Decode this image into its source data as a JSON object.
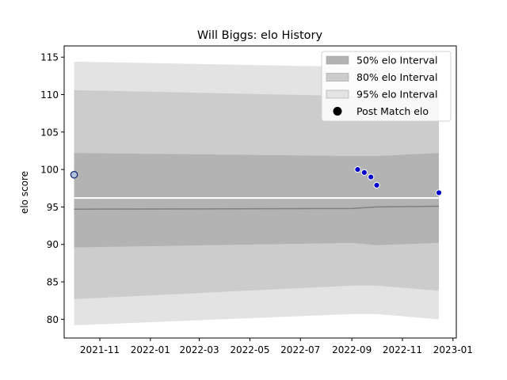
{
  "chart_data": {
    "type": "area",
    "title": "Will Biggs: elo History",
    "xlabel": "",
    "ylabel": "elo score",
    "xlim": [
      "2021-09-19",
      "2023-01-05"
    ],
    "ylim": [
      77.5,
      116.5
    ],
    "x_ticks": [
      "2021-11",
      "2022-01",
      "2022-03",
      "2022-05",
      "2022-07",
      "2022-09",
      "2022-11",
      "2023-01"
    ],
    "y_ticks": [
      80,
      85,
      90,
      95,
      100,
      105,
      110,
      115
    ],
    "grid": false,
    "legend_position": "top-right",
    "legend": [
      {
        "label": "50% elo Interval",
        "color": "#b3b3b3",
        "kind": "patch"
      },
      {
        "label": "80% elo Interval",
        "color": "#cccccc",
        "kind": "patch"
      },
      {
        "label": "95% elo Interval",
        "color": "#e3e3e3",
        "kind": "patch"
      },
      {
        "label": "Post Match elo",
        "color": "#000000",
        "kind": "marker"
      }
    ],
    "bands": {
      "dates": [
        "2021-10-01",
        "2022-09-01",
        "2022-10-01",
        "2022-12-15"
      ],
      "p95": {
        "lower": [
          79.2,
          80.7,
          80.7,
          80.0
        ],
        "upper": [
          114.4,
          113.7,
          113.7,
          114.0
        ]
      },
      "p80": {
        "lower": [
          82.7,
          84.5,
          84.5,
          83.8
        ],
        "upper": [
          110.6,
          109.8,
          109.8,
          110.2
        ]
      },
      "p50": {
        "lower": [
          89.6,
          90.2,
          89.9,
          90.2
        ],
        "upper": [
          102.2,
          101.8,
          101.8,
          102.2
        ]
      },
      "median": [
        94.7,
        94.8,
        95.0,
        95.1
      ]
    },
    "mean_line": {
      "dates": [
        "2021-10-01",
        "2022-12-15"
      ],
      "value": 96.2,
      "color": "#ffffff"
    },
    "series": [
      {
        "name": "Post Match elo",
        "marker_color": "#0000cc",
        "points": [
          {
            "x": "2021-10-01",
            "y": 99.3,
            "style": "first"
          },
          {
            "x": "2022-09-08",
            "y": 100.0
          },
          {
            "x": "2022-09-16",
            "y": 99.6
          },
          {
            "x": "2022-09-24",
            "y": 99.0
          },
          {
            "x": "2022-10-01",
            "y": 97.9
          },
          {
            "x": "2022-12-15",
            "y": 96.9
          }
        ]
      }
    ]
  }
}
